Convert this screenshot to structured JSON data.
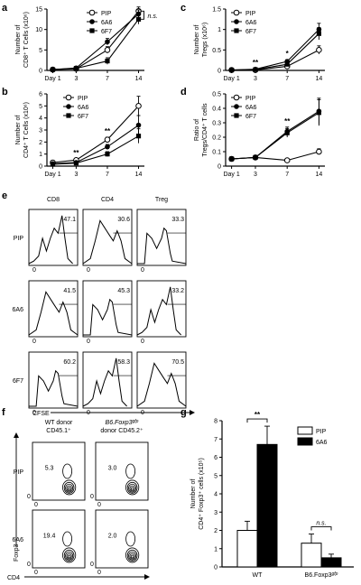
{
  "panels": {
    "a": "a",
    "b": "b",
    "c": "c",
    "d": "d",
    "e": "e",
    "f": "f",
    "g": "g"
  },
  "legend": [
    "PIP",
    "6A6",
    "6F7"
  ],
  "chart_data": [
    {
      "panel": "a",
      "type": "line",
      "x": [
        "Day 1",
        "3",
        "7",
        "14"
      ],
      "ylabel_lines": [
        "Number of",
        "CD8⁺ T Cells (x10⁶)"
      ],
      "yticks": [
        0,
        5,
        10,
        15
      ],
      "ylim": [
        0,
        15
      ],
      "series": [
        {
          "name": "PIP",
          "values": [
            0.2,
            0.4,
            5.0,
            14.5
          ],
          "err": [
            0.1,
            0.1,
            0.8,
            1.0
          ]
        },
        {
          "name": "6A6",
          "values": [
            0.2,
            0.6,
            7.0,
            13.8
          ],
          "err": [
            0.1,
            0.1,
            0.8,
            1.0
          ]
        },
        {
          "name": "6F7",
          "values": [
            0.2,
            0.5,
            2.3,
            12.5
          ],
          "err": [
            0.1,
            0.1,
            0.8,
            1.2
          ]
        }
      ],
      "annotations": [
        {
          "text": "n.s.",
          "at": "14"
        }
      ]
    },
    {
      "panel": "b",
      "type": "line",
      "x": [
        "Day 1",
        "3",
        "7",
        "14"
      ],
      "ylabel_lines": [
        "Number of",
        "CD4⁺ T Cells (x10⁶)"
      ],
      "yticks": [
        0,
        1,
        2,
        3,
        4,
        5,
        6
      ],
      "ylim": [
        0,
        6
      ],
      "series": [
        {
          "name": "PIP",
          "values": [
            0.3,
            0.5,
            2.2,
            5.0
          ],
          "err": [
            0.05,
            0.1,
            0.2,
            0.8
          ]
        },
        {
          "name": "6A6",
          "values": [
            0.2,
            0.3,
            1.6,
            3.4
          ],
          "err": [
            0.05,
            0.1,
            0.2,
            0.8
          ]
        },
        {
          "name": "6F7",
          "values": [
            0.15,
            0.25,
            1.0,
            2.5
          ],
          "err": [
            0.05,
            0.05,
            0.2,
            0.6
          ]
        }
      ],
      "annotations": [
        {
          "text": "**",
          "at": "3"
        },
        {
          "text": "**",
          "at": "7"
        }
      ]
    },
    {
      "panel": "c",
      "type": "line",
      "x": [
        "Day 1",
        "3",
        "7",
        "14"
      ],
      "ylabel_lines": [
        "Number of",
        "Tregs (x10⁶)"
      ],
      "yticks": [
        0.0,
        0.5,
        1.0,
        1.5
      ],
      "ylim": [
        0,
        1.5
      ],
      "series": [
        {
          "name": "PIP",
          "values": [
            0.01,
            0.01,
            0.1,
            0.5
          ],
          "err": [
            0.005,
            0.005,
            0.03,
            0.1
          ]
        },
        {
          "name": "6A6",
          "values": [
            0.01,
            0.03,
            0.22,
            1.0
          ],
          "err": [
            0.005,
            0.01,
            0.04,
            0.15
          ]
        },
        {
          "name": "6F7",
          "values": [
            0.01,
            0.02,
            0.15,
            0.9
          ],
          "err": [
            0.005,
            0.01,
            0.03,
            0.15
          ]
        }
      ],
      "annotations": [
        {
          "text": "**",
          "at": "3"
        },
        {
          "text": "*",
          "at": "7"
        }
      ]
    },
    {
      "panel": "d",
      "type": "line",
      "x": [
        "Day 1",
        "3",
        "7",
        "14"
      ],
      "ylabel_lines": [
        "Ratio of",
        "Tregs/CD4⁺ T cells"
      ],
      "yticks": [
        0.0,
        0.1,
        0.2,
        0.3,
        0.4,
        0.5
      ],
      "ylim": [
        0,
        0.5
      ],
      "series": [
        {
          "name": "PIP",
          "values": [
            0.05,
            0.06,
            0.04,
            0.1
          ],
          "err": [
            0.005,
            0.005,
            0.005,
            0.02
          ]
        },
        {
          "name": "6A6",
          "values": [
            0.05,
            0.06,
            0.24,
            0.38
          ],
          "err": [
            0.005,
            0.005,
            0.03,
            0.09
          ]
        },
        {
          "name": "6F7",
          "values": [
            0.05,
            0.06,
            0.23,
            0.37
          ],
          "err": [
            0.005,
            0.005,
            0.03,
            0.09
          ]
        }
      ],
      "annotations": [
        {
          "text": "**",
          "at": "7"
        }
      ]
    },
    {
      "panel": "g",
      "type": "bar",
      "categories": [
        "WT",
        "B6.Foxp3gfp"
      ],
      "ylabel_lines": [
        "Number of",
        "CD4⁺ Foxp3⁺ cells (x10⁵)"
      ],
      "yticks": [
        0,
        1,
        2,
        3,
        4,
        5,
        6,
        7,
        8
      ],
      "ylim": [
        0,
        8
      ],
      "series": [
        {
          "name": "PIP",
          "values": [
            2.0,
            1.3
          ],
          "err": [
            0.5,
            0.5
          ]
        },
        {
          "name": "6A6",
          "values": [
            6.7,
            0.5
          ],
          "err": [
            1.0,
            0.2
          ]
        }
      ],
      "annotations": [
        {
          "text": "**",
          "between": "WT"
        },
        {
          "text": "n.s.",
          "between": "B6.Foxp3gfp"
        }
      ]
    }
  ],
  "panel_e": {
    "cols": [
      "CD8",
      "CD4",
      "Treg"
    ],
    "rows": [
      "PIP",
      "6A6",
      "6F7"
    ],
    "percents": [
      [
        "47.1",
        "30.6",
        "33.3"
      ],
      [
        "41.5",
        "45.3",
        "33.2"
      ],
      [
        "60.2",
        "58.3",
        "70.5"
      ]
    ],
    "xlabel": "CFSE",
    "zero": "0"
  },
  "panel_f": {
    "col1": [
      "WT donor",
      "CD45.1⁺"
    ],
    "col2_a": "B6.Foxp3",
    "col2_sup": "gfp",
    "col2_b": "donor CD45.2⁺",
    "rows": [
      "PIP",
      "6A6"
    ],
    "percents": [
      [
        "5.3",
        "3.0"
      ],
      [
        "19.4",
        "2.0"
      ]
    ],
    "ylabel": "Foxp3",
    "xlabel": "CD4",
    "zero": "0"
  },
  "g_xlabels": {
    "wt": "WT",
    "b6": "B6.Foxp3",
    "b6sup": "gfp"
  }
}
